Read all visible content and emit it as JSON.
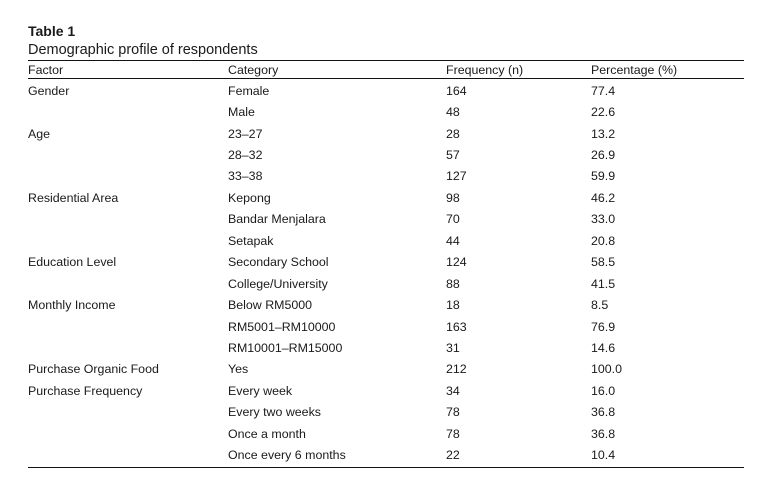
{
  "table": {
    "label": "Table 1",
    "caption": "Demographic profile of respondents",
    "headers": [
      "Factor",
      "Category",
      "Frequency (n)",
      "Percentage (%)"
    ],
    "rows": [
      [
        "Gender",
        "Female",
        "164",
        "77.4"
      ],
      [
        "",
        "Male",
        "48",
        "22.6"
      ],
      [
        "Age",
        "23–27",
        "28",
        "13.2"
      ],
      [
        "",
        "28–32",
        "57",
        "26.9"
      ],
      [
        "",
        "33–38",
        "127",
        "59.9"
      ],
      [
        "Residential Area",
        "Kepong",
        "98",
        "46.2"
      ],
      [
        "",
        "Bandar Menjalara",
        "70",
        "33.0"
      ],
      [
        "",
        "Setapak",
        "44",
        "20.8"
      ],
      [
        "Education Level",
        "Secondary School",
        "124",
        "58.5"
      ],
      [
        "",
        "College/University",
        "88",
        "41.5"
      ],
      [
        "Monthly Income",
        "Below RM5000",
        "18",
        "8.5"
      ],
      [
        "",
        "RM5001–RM10000",
        "163",
        "76.9"
      ],
      [
        "",
        "RM10001–RM15000",
        "31",
        "14.6"
      ],
      [
        "Purchase Organic Food",
        "Yes",
        "212",
        "100.0"
      ],
      [
        "Purchase Frequency",
        "Every week",
        "34",
        "16.0"
      ],
      [
        "",
        "Every two weeks",
        "78",
        "36.8"
      ],
      [
        "",
        "Once a month",
        "78",
        "36.8"
      ],
      [
        "",
        "Once every 6 months",
        "22",
        "10.4"
      ]
    ]
  }
}
